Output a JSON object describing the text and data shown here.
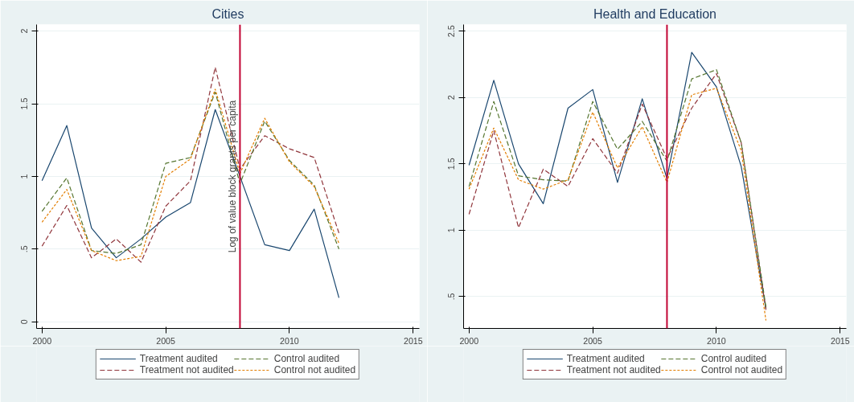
{
  "chart_data": [
    {
      "type": "line",
      "title": "Cities",
      "x": [
        2000,
        2001,
        2002,
        2003,
        2004,
        2005,
        2006,
        2007,
        2008,
        2009,
        2010,
        2011,
        2012
      ],
      "series": [
        {
          "name": "Treatment audited",
          "color": "#1a476f",
          "line_style": "solid",
          "values": [
            0.97,
            1.35,
            0.645,
            0.44,
            0.57,
            0.72,
            0.82,
            1.46,
            1.0,
            0.53,
            0.49,
            0.775,
            0.165
          ]
        },
        {
          "name": "Treatment not audited",
          "color": "#90353b",
          "line_style": "dashed",
          "values": [
            0.52,
            0.8,
            0.44,
            0.57,
            0.41,
            0.795,
            0.97,
            1.75,
            1.05,
            1.28,
            1.19,
            1.13,
            0.61
          ]
        },
        {
          "name": "Control audited",
          "color": "#55752f",
          "line_style": "dashed",
          "values": [
            0.76,
            0.99,
            0.49,
            0.47,
            0.53,
            1.09,
            1.13,
            1.58,
            0.95,
            1.38,
            1.11,
            0.94,
            0.5
          ]
        },
        {
          "name": "Control not audited",
          "color": "#e37e00",
          "line_style": "dotted",
          "values": [
            0.685,
            0.91,
            0.49,
            0.42,
            0.45,
            1.0,
            1.12,
            1.6,
            1.02,
            1.4,
            1.1,
            0.93,
            0.54
          ]
        }
      ],
      "xlim": [
        1999.78,
        2015.25
      ],
      "xticks": [
        2000,
        2005,
        2010,
        2015
      ],
      "ylim": [
        -0.046,
        2.045
      ],
      "yticks": [
        0,
        {
          "value": 0.5,
          "label": ".5"
        },
        1,
        1.5,
        2
      ],
      "grid": "y",
      "legend": "bottom",
      "ref_lines": [
        {
          "axis": "x",
          "value": 2008,
          "label": "Log of value block grants per capita",
          "color": "#c10534"
        }
      ]
    },
    {
      "type": "line",
      "title": "Health and Education",
      "x": [
        2000,
        2001,
        2002,
        2003,
        2004,
        2005,
        2006,
        2007,
        2008,
        2009,
        2010,
        2011,
        2012
      ],
      "series": [
        {
          "name": "Treatment audited",
          "color": "#1a476f",
          "line_style": "solid",
          "values": [
            1.49,
            2.13,
            1.5,
            1.2,
            1.92,
            2.06,
            1.36,
            1.99,
            1.39,
            2.34,
            2.08,
            1.48,
            0.41
          ]
        },
        {
          "name": "Treatment not audited",
          "color": "#90353b",
          "line_style": "dashed",
          "values": [
            1.12,
            1.75,
            1.02,
            1.46,
            1.33,
            1.69,
            1.43,
            1.95,
            1.54,
            1.92,
            2.18,
            1.66,
            0.4
          ]
        },
        {
          "name": "Control audited",
          "color": "#55752f",
          "line_style": "dashed",
          "values": [
            1.33,
            1.97,
            1.41,
            1.38,
            1.37,
            1.97,
            1.61,
            1.82,
            1.52,
            2.14,
            2.21,
            1.66,
            0.42
          ]
        },
        {
          "name": "Control not audited",
          "color": "#e37e00",
          "line_style": "dotted",
          "values": [
            1.31,
            1.77,
            1.38,
            1.31,
            1.38,
            1.89,
            1.47,
            1.78,
            1.36,
            2.02,
            2.07,
            1.6,
            0.32
          ]
        }
      ],
      "xlim": [
        1999.78,
        2015.25
      ],
      "xticks": [
        2000,
        2005,
        2010,
        2015
      ],
      "ylim": [
        0.26,
        2.55
      ],
      "yticks": [
        {
          "value": 0.5,
          "label": ".5"
        },
        1,
        1.5,
        2,
        2.5
      ],
      "grid": "y",
      "legend": "bottom",
      "ref_lines": [
        {
          "axis": "x",
          "value": 2008,
          "color": "#c10534"
        }
      ]
    }
  ]
}
